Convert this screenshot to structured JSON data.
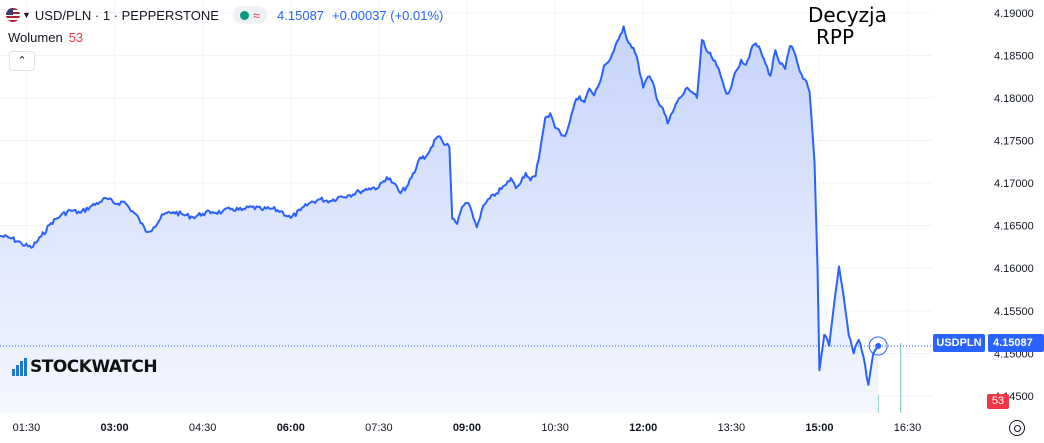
{
  "header": {
    "symbol_line": "USD/PLN · 1 · PEPPERSTONE",
    "last_price": "4.15087",
    "change": "+0.00037 (+0.01%)"
  },
  "volume_legend": {
    "label": "Wolumen",
    "value": "53"
  },
  "annotation": {
    "line1": "Decyzja",
    "line2": "RPP"
  },
  "watermark": "STOCKWATCH",
  "price_scale": {
    "symbol_label": "USDPLN",
    "price_label": "4.15087",
    "volume_label": "53"
  },
  "colors": {
    "line": "#2962ff",
    "area_top": "#c5d4fb",
    "area_bottom": "#f4f7fe",
    "volume_up": "#8ccfc4",
    "volume_down": "#f4a7a7"
  },
  "chart_data": {
    "type": "area",
    "y_tick_labels": [
      "4.19000",
      "4.18500",
      "4.18000",
      "4.17500",
      "4.17000",
      "4.16500",
      "4.16000",
      "4.15500",
      "4.15000",
      "4.14500"
    ],
    "x_tick_labels": [
      "01:30",
      "03:00",
      "04:30",
      "06:00",
      "07:30",
      "09:00",
      "10:30",
      "12:00",
      "13:30",
      "15:00",
      "16:30"
    ],
    "x_range": [
      "01:03",
      "16:55"
    ],
    "ylim": [
      4.143,
      4.1915
    ],
    "series": [
      {
        "values": [
          [
            "01:03",
            4.1638
          ],
          [
            "01:15",
            4.1635
          ],
          [
            "01:25",
            4.1629
          ],
          [
            "01:35",
            4.1624
          ],
          [
            "01:45",
            4.1637
          ],
          [
            "01:55",
            4.1653
          ],
          [
            "02:05",
            4.1662
          ],
          [
            "02:15",
            4.1668
          ],
          [
            "02:25",
            4.1665
          ],
          [
            "02:35",
            4.1672
          ],
          [
            "02:45",
            4.1678
          ],
          [
            "02:52",
            4.1682
          ],
          [
            "03:00",
            4.1676
          ],
          [
            "03:10",
            4.1678
          ],
          [
            "03:15",
            4.1671
          ],
          [
            "03:25",
            4.1658
          ],
          [
            "03:32",
            4.1643
          ],
          [
            "03:40",
            4.1648
          ],
          [
            "03:50",
            4.1663
          ],
          [
            "04:00",
            4.1666
          ],
          [
            "04:10",
            4.1663
          ],
          [
            "04:20",
            4.166
          ],
          [
            "04:30",
            4.1664
          ],
          [
            "04:40",
            4.1666
          ],
          [
            "04:50",
            4.1666
          ],
          [
            "05:00",
            4.167
          ],
          [
            "05:10",
            4.1668
          ],
          [
            "05:20",
            4.1672
          ],
          [
            "05:30",
            4.1669
          ],
          [
            "05:40",
            4.167
          ],
          [
            "05:50",
            4.1667
          ],
          [
            "06:00",
            4.1659
          ],
          [
            "06:10",
            4.1668
          ],
          [
            "06:20",
            4.1677
          ],
          [
            "06:30",
            4.1681
          ],
          [
            "06:40",
            4.1679
          ],
          [
            "06:50",
            4.1684
          ],
          [
            "07:00",
            4.1686
          ],
          [
            "07:10",
            4.169
          ],
          [
            "07:20",
            4.1694
          ],
          [
            "07:30",
            4.1695
          ],
          [
            "07:38",
            4.1707
          ],
          [
            "07:45",
            4.17
          ],
          [
            "07:52",
            4.1688
          ],
          [
            "08:00",
            4.1698
          ],
          [
            "08:08",
            4.1717
          ],
          [
            "08:12",
            4.173
          ],
          [
            "08:18",
            4.1731
          ],
          [
            "08:22",
            4.1738
          ],
          [
            "08:28",
            4.1752
          ],
          [
            "08:32",
            4.1755
          ],
          [
            "08:35",
            4.1749
          ],
          [
            "08:42",
            4.1742
          ],
          [
            "08:45",
            4.1658
          ],
          [
            "08:50",
            4.1652
          ],
          [
            "08:55",
            4.1672
          ],
          [
            "09:00",
            4.1677
          ],
          [
            "09:05",
            4.1666
          ],
          [
            "09:10",
            4.1648
          ],
          [
            "09:15",
            4.1668
          ],
          [
            "09:20",
            4.1678
          ],
          [
            "09:30",
            4.1688
          ],
          [
            "09:40",
            4.1698
          ],
          [
            "09:45",
            4.1706
          ],
          [
            "09:50",
            4.1694
          ],
          [
            "10:00",
            4.1712
          ],
          [
            "10:05",
            4.1703
          ],
          [
            "10:10",
            4.1708
          ],
          [
            "10:15",
            4.1741
          ],
          [
            "10:20",
            4.1777
          ],
          [
            "10:25",
            4.1782
          ],
          [
            "10:30",
            4.1765
          ],
          [
            "10:35",
            4.176
          ],
          [
            "10:40",
            4.1755
          ],
          [
            "10:45",
            4.1772
          ],
          [
            "10:50",
            4.1794
          ],
          [
            "10:55",
            4.1802
          ],
          [
            "11:00",
            4.1795
          ],
          [
            "11:05",
            4.1811
          ],
          [
            "11:10",
            4.1803
          ],
          [
            "11:15",
            4.1816
          ],
          [
            "11:20",
            4.1838
          ],
          [
            "11:25",
            4.1843
          ],
          [
            "11:30",
            4.1855
          ],
          [
            "11:35",
            4.1869
          ],
          [
            "11:40",
            4.1884
          ],
          [
            "11:45",
            4.1865
          ],
          [
            "11:50",
            4.1859
          ],
          [
            "11:55",
            4.184
          ],
          [
            "12:00",
            4.1812
          ],
          [
            "12:05",
            4.1825
          ],
          [
            "12:10",
            4.1818
          ],
          [
            "12:15",
            4.1796
          ],
          [
            "12:20",
            4.1788
          ],
          [
            "12:25",
            4.177
          ],
          [
            "12:30",
            4.1783
          ],
          [
            "12:35",
            4.1796
          ],
          [
            "12:40",
            4.1803
          ],
          [
            "12:45",
            4.1812
          ],
          [
            "12:50",
            4.1807
          ],
          [
            "12:55",
            4.18
          ],
          [
            "13:00",
            4.1868
          ],
          [
            "13:05",
            4.1855
          ],
          [
            "13:10",
            4.1848
          ],
          [
            "13:15",
            4.1838
          ],
          [
            "13:20",
            4.1823
          ],
          [
            "13:25",
            4.1805
          ],
          [
            "13:30",
            4.1813
          ],
          [
            "13:35",
            4.1832
          ],
          [
            "13:40",
            4.1845
          ],
          [
            "13:45",
            4.1839
          ],
          [
            "13:50",
            4.1856
          ],
          [
            "13:55",
            4.1864
          ],
          [
            "14:00",
            4.1855
          ],
          [
            "14:05",
            4.184
          ],
          [
            "14:10",
            4.1826
          ],
          [
            "14:15",
            4.1856
          ],
          [
            "14:20",
            4.184
          ],
          [
            "14:25",
            4.1834
          ],
          [
            "14:30",
            4.1861
          ],
          [
            "14:35",
            4.1852
          ],
          [
            "14:40",
            4.1831
          ],
          [
            "14:45",
            4.1822
          ],
          [
            "14:50",
            4.1807
          ],
          [
            "14:55",
            4.1725
          ],
          [
            "14:58",
            4.1602
          ],
          [
            "15:00",
            4.148
          ],
          [
            "15:05",
            4.1522
          ],
          [
            "15:10",
            4.1509
          ],
          [
            "15:15",
            4.1558
          ],
          [
            "15:20",
            4.1602
          ],
          [
            "15:25",
            4.1565
          ],
          [
            "15:30",
            4.1521
          ],
          [
            "15:35",
            4.15
          ],
          [
            "15:40",
            4.1516
          ],
          [
            "15:45",
            4.1496
          ],
          [
            "15:50",
            4.1463
          ],
          [
            "15:55",
            4.15
          ],
          [
            "16:00",
            4.1509
          ]
        ]
      }
    ],
    "last_value": 4.15087
  }
}
